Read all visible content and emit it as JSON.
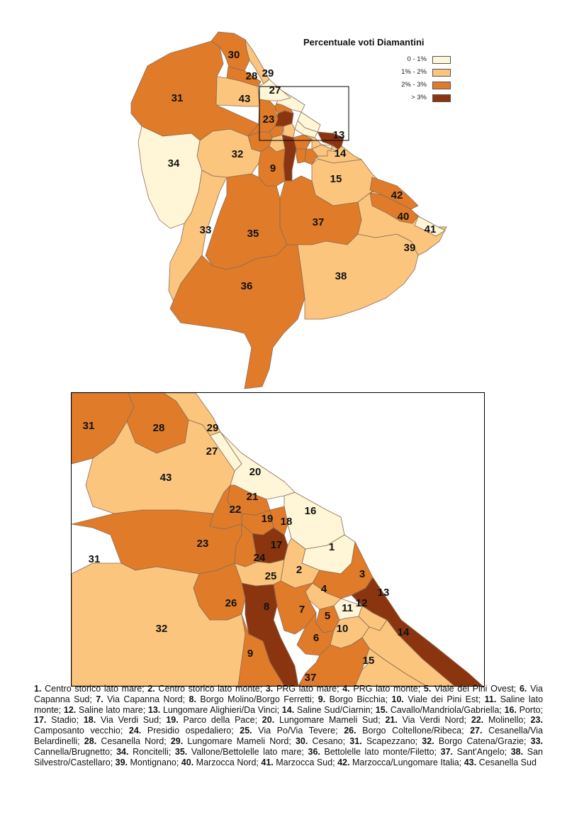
{
  "legend": {
    "title": "Percentuale voti Diamantini",
    "classes": [
      {
        "label": "0 - 1%",
        "color": "#fef6d6"
      },
      {
        "label": "1% - 2%",
        "color": "#fbc57e"
      },
      {
        "label": "2% - 3%",
        "color": "#e07b2a"
      },
      {
        "label": "> 3%",
        "color": "#8b3510"
      }
    ]
  },
  "colors": {
    "boundary": "#8a6c55",
    "sea": "#ffffff",
    "frame": "#000000"
  },
  "zones": [
    {
      "id": "1",
      "name": "Centro storico lato mare",
      "class": 0
    },
    {
      "id": "2",
      "name": "Centro storico lato monte",
      "class": 1
    },
    {
      "id": "3",
      "name": "PRG lato mare",
      "class": 2
    },
    {
      "id": "4",
      "name": "PRG lato monte",
      "class": 1
    },
    {
      "id": "5",
      "name": "Viale dei Pini Ovest",
      "class": 2
    },
    {
      "id": "6",
      "name": "Via Capanna Sud",
      "class": 2
    },
    {
      "id": "7",
      "name": "Via Capanna Nord",
      "class": 2
    },
    {
      "id": "8",
      "name": "Borgo Molino/Borgo Ferretti",
      "class": 3
    },
    {
      "id": "9",
      "name": "Borgo Bicchia",
      "class": 2
    },
    {
      "id": "10",
      "name": "Viale dei Pini Est",
      "class": 1
    },
    {
      "id": "11",
      "name": "Saline lato monte",
      "class": 0
    },
    {
      "id": "12",
      "name": "Saline lato mare",
      "class": 1
    },
    {
      "id": "13",
      "name": "Lungomare Alighieri/Da Vinci",
      "class": 3
    },
    {
      "id": "14",
      "name": "Saline Sud/Ciarnin",
      "class": 1
    },
    {
      "id": "15",
      "name": "Cavallo/Mandriola/Gabriella",
      "class": 1
    },
    {
      "id": "16",
      "name": "Porto",
      "class": 0
    },
    {
      "id": "17",
      "name": "Stadio",
      "class": 3
    },
    {
      "id": "18",
      "name": "Via Verdi Sud",
      "class": 2
    },
    {
      "id": "19",
      "name": "Parco della Pace",
      "class": 2
    },
    {
      "id": "20",
      "name": "Lungomare Mameli Sud",
      "class": 0
    },
    {
      "id": "21",
      "name": "Via Verdi Nord",
      "class": 2
    },
    {
      "id": "22",
      "name": "Molinello",
      "class": 2
    },
    {
      "id": "23",
      "name": "Camposanto vecchio",
      "class": 2
    },
    {
      "id": "24",
      "name": "Presidio ospedaliero",
      "class": 2
    },
    {
      "id": "25",
      "name": "Via Po/Via Tevere",
      "class": 1
    },
    {
      "id": "26",
      "name": "Borgo Coltellone/Ribeca",
      "class": 2
    },
    {
      "id": "27",
      "name": "Cesanella/Via Belardinelli",
      "class": 0
    },
    {
      "id": "28",
      "name": "Cesanella Nord",
      "class": 2
    },
    {
      "id": "29",
      "name": "Lungomare Mameli Nord",
      "class": 1
    },
    {
      "id": "30",
      "name": "Cesano",
      "class": 2
    },
    {
      "id": "31",
      "name": "Scapezzano",
      "class": 2
    },
    {
      "id": "32",
      "name": "Borgo Catena/Grazie",
      "class": 1
    },
    {
      "id": "33",
      "name": "Cannella/Brugnetto",
      "class": 1
    },
    {
      "id": "34",
      "name": "Roncitelli",
      "class": 0
    },
    {
      "id": "35",
      "name": "Vallone/Bettolelle lato mare",
      "class": 2
    },
    {
      "id": "36",
      "name": "Bettolelle lato monte/Filetto",
      "class": 2
    },
    {
      "id": "37",
      "name": "Sant'Angelo",
      "class": 2
    },
    {
      "id": "38",
      "name": "San Silvestro/Castellaro",
      "class": 1
    },
    {
      "id": "39",
      "name": "Montignano",
      "class": 1
    },
    {
      "id": "40",
      "name": "Marzocca Nord",
      "class": 2
    },
    {
      "id": "41",
      "name": "Marzocca Sud",
      "class": 0
    },
    {
      "id": "42",
      "name": "Marzocca/Lungomare Italia",
      "class": 2
    },
    {
      "id": "43",
      "name": "Cesanella Sud",
      "class": 1
    }
  ]
}
